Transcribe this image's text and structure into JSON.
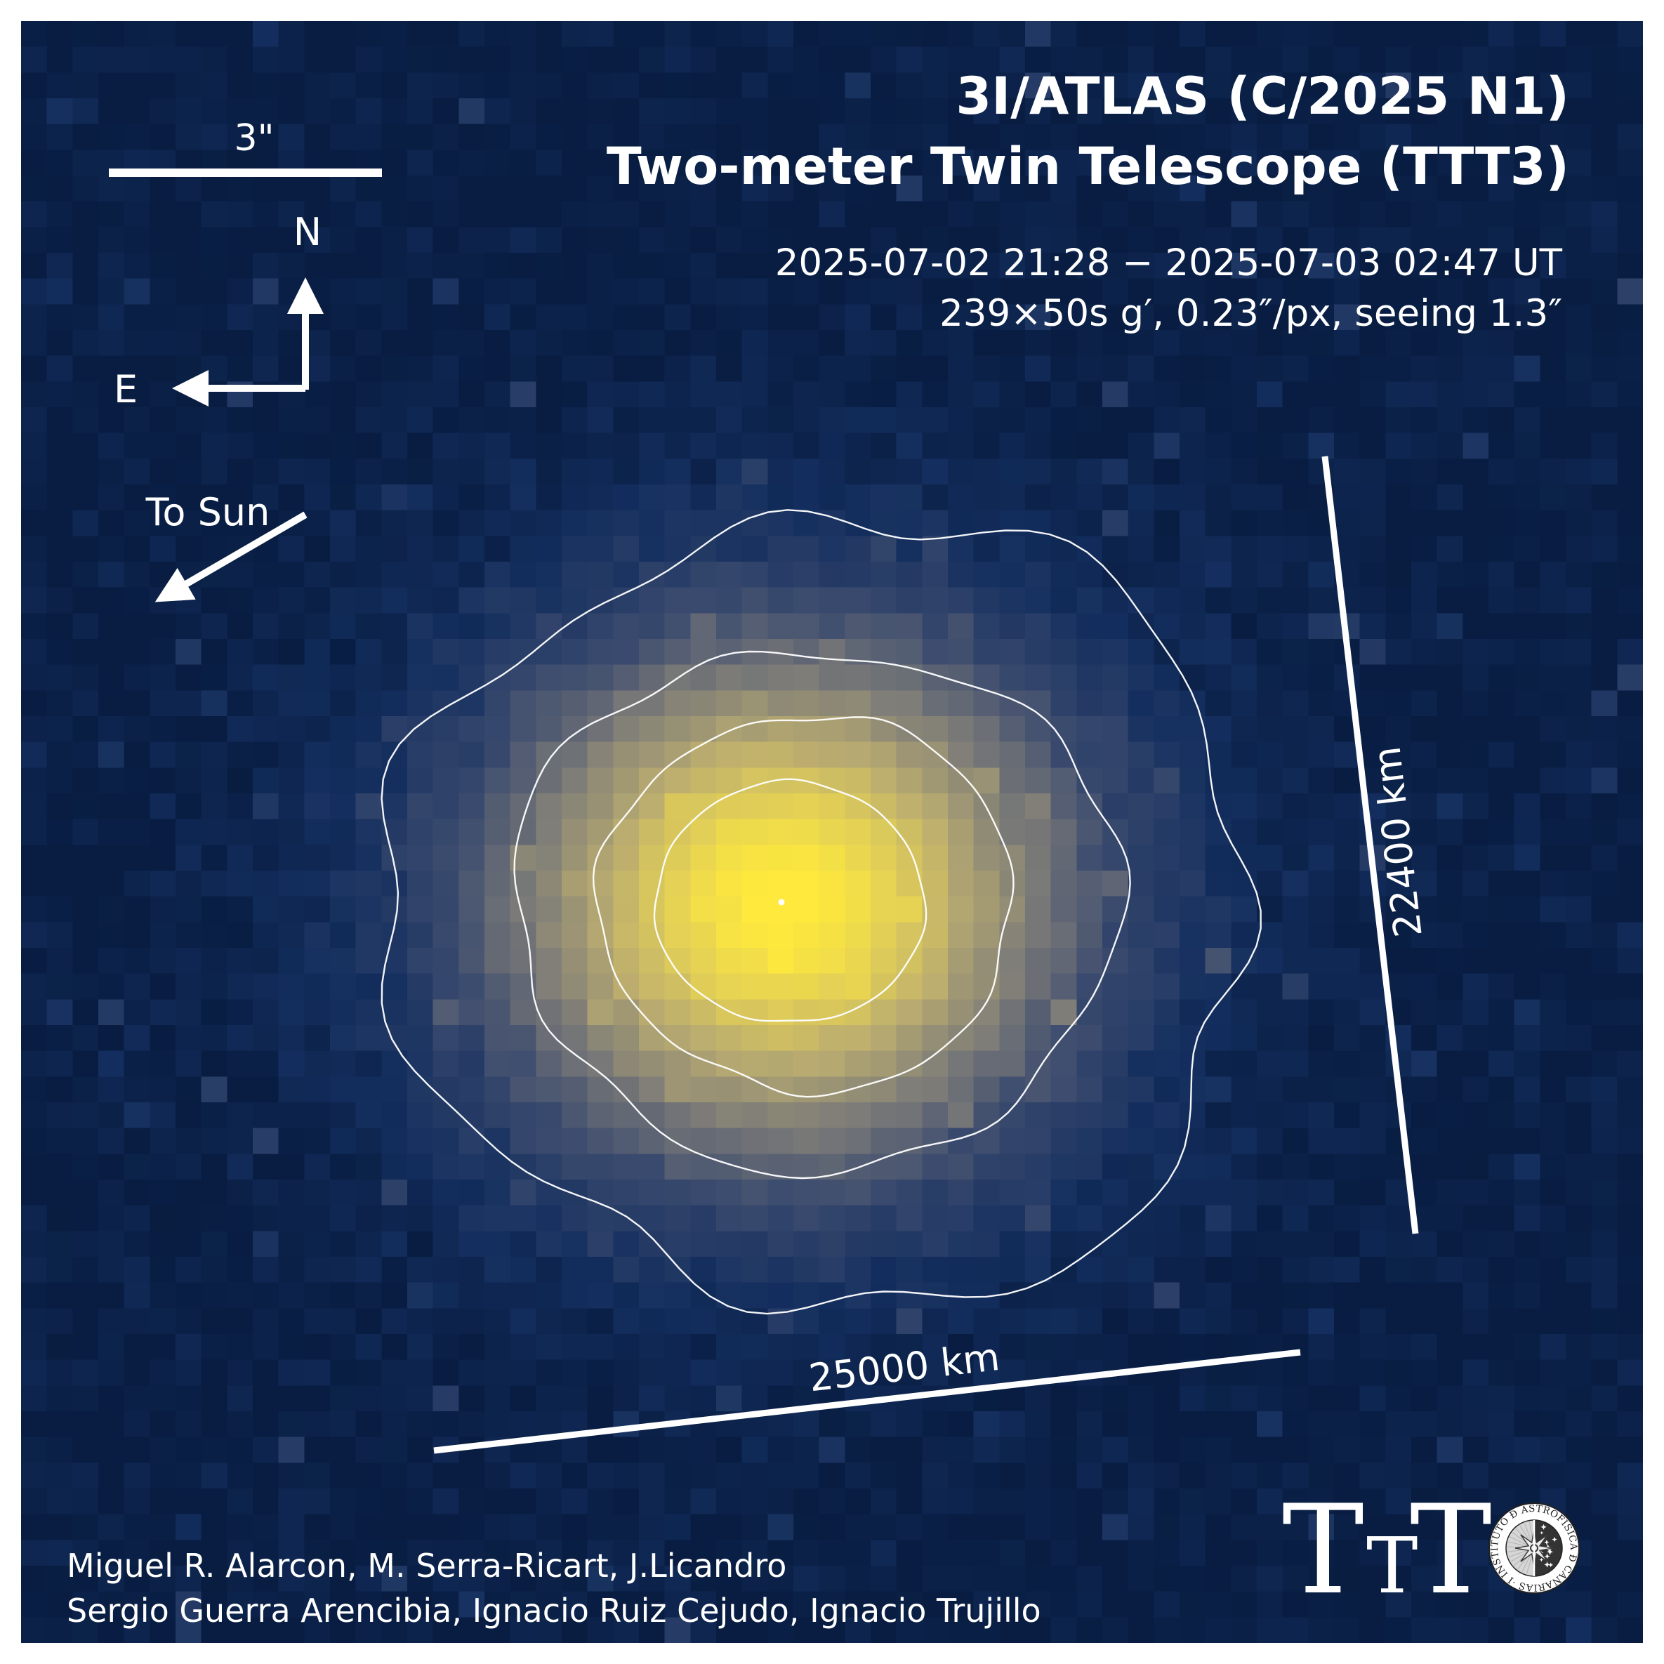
{
  "header": {
    "title_line1": "3I/ATLAS (C/2025 N1)",
    "title_line2": "Two-meter Twin Telescope (TTT3)",
    "obs_window": "2025-07-02 21:28 − 2025-07-03 02:47 UT",
    "obs_setup": "239×50s g′, 0.23″/px, seeing 1.3″"
  },
  "annotations": {
    "scalebar_label": "3\"",
    "north_label": "N",
    "east_label": "E",
    "sun_label": "To Sun",
    "extent_vertical": "22400 km",
    "extent_horizontal": "25000 km"
  },
  "credits": {
    "line1": "Miguel R. Alarcon, M. Serra-Ricart, J.Licandro",
    "line2": "Sergio Guerra Arencibia, Ignacio Ruiz Cejudo, Ignacio Trujillo"
  },
  "logos": {
    "ttt_letters": [
      "T",
      "T",
      "T"
    ],
    "iac_ring_text": "INSTITUTO Đ ASTROFISICA Đ CANARIAS ·IAC· "
  },
  "palette": {
    "frame": "#ffffff",
    "background": "#0a2250",
    "ink": "#ffffff",
    "colormap_stops": [
      [
        0.0,
        [
          8,
          28,
          64
        ]
      ],
      [
        0.12,
        [
          19,
          46,
          94
        ]
      ],
      [
        0.3,
        [
          58,
          74,
          110
        ]
      ],
      [
        0.5,
        [
          124,
          123,
          120
        ]
      ],
      [
        0.72,
        [
          186,
          172,
          112
        ]
      ],
      [
        0.88,
        [
          228,
          209,
          85
        ]
      ],
      [
        1.0,
        [
          254,
          233,
          60
        ]
      ]
    ]
  }
}
